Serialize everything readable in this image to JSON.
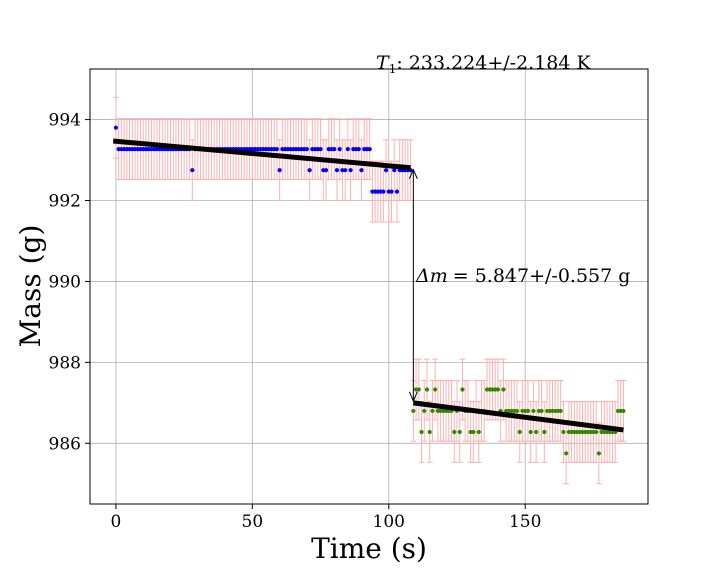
{
  "chart_data": {
    "type": "scatter",
    "xlabel": "Time (s)",
    "ylabel": "Mass (g)",
    "xlim": [
      -9.5,
      195
    ],
    "ylim": [
      984.5,
      995.25
    ],
    "xticks": [
      0,
      50,
      100,
      150
    ],
    "yticks": [
      986,
      988,
      990,
      992,
      994
    ],
    "grid": true,
    "annotations": {
      "temperature_label": "T",
      "temperature_sub": "1",
      "temperature_value": ": 233.224+/-2.184 K",
      "delta_label": "Δm",
      "delta_value": "= 5.847+/-0.557 g"
    },
    "error_bar_half_width": 0.75,
    "series": [
      {
        "color": "#0000ff",
        "x": [
          0,
          1,
          2,
          3,
          4,
          5,
          6,
          7,
          8,
          9,
          10,
          11,
          12,
          13,
          14,
          15,
          16,
          17,
          18,
          19,
          20,
          21,
          22,
          23,
          24,
          25,
          26,
          27,
          28,
          29,
          30,
          31,
          32,
          33,
          34,
          35,
          36,
          37,
          38,
          39,
          40,
          41,
          42,
          43,
          44,
          45,
          46,
          47,
          48,
          49,
          50,
          51,
          52,
          53,
          54,
          55,
          56,
          57,
          58,
          59,
          60,
          61,
          62,
          63,
          64,
          65,
          66,
          67,
          68,
          69,
          70,
          71,
          72,
          73,
          74,
          75,
          76,
          77,
          78,
          79,
          80,
          81,
          82,
          83,
          84,
          85,
          86,
          87,
          88,
          89,
          90,
          91,
          92,
          93,
          94,
          95,
          96,
          97,
          98,
          99,
          100,
          101,
          102,
          103,
          104,
          105,
          106,
          107,
          108
        ],
        "y": [
          993.8,
          993.27,
          993.27,
          993.27,
          993.27,
          993.27,
          993.27,
          993.27,
          993.27,
          993.27,
          993.27,
          993.27,
          993.27,
          993.27,
          993.27,
          993.27,
          993.27,
          993.27,
          993.27,
          993.27,
          993.27,
          993.27,
          993.27,
          993.27,
          993.27,
          993.27,
          993.27,
          993.27,
          992.75,
          993.27,
          993.27,
          993.27,
          993.27,
          993.27,
          993.27,
          993.27,
          993.27,
          993.27,
          993.27,
          993.27,
          993.27,
          993.27,
          993.27,
          993.27,
          993.27,
          993.27,
          993.27,
          993.27,
          993.27,
          993.27,
          993.27,
          993.27,
          993.27,
          993.27,
          993.27,
          993.27,
          993.27,
          993.27,
          993.27,
          993.27,
          992.75,
          993.27,
          993.27,
          993.27,
          993.27,
          993.27,
          993.27,
          993.27,
          993.27,
          993.27,
          993.27,
          992.75,
          993.27,
          993.27,
          993.27,
          993.27,
          992.75,
          992.75,
          993.27,
          993.27,
          993.27,
          992.75,
          993.27,
          992.75,
          992.75,
          993.27,
          992.75,
          993.27,
          993.27,
          993.27,
          992.75,
          993.27,
          993.27,
          993.27,
          992.22,
          992.22,
          992.22,
          992.22,
          992.22,
          992.75,
          992.22,
          992.22,
          992.75,
          992.22,
          992.75,
          992.75,
          992.75,
          992.75,
          992.75
        ]
      },
      {
        "color": "#2e8b00",
        "x": [
          109,
          110,
          111,
          112,
          113,
          114,
          115,
          116,
          117,
          118,
          119,
          120,
          121,
          122,
          123,
          124,
          125,
          126,
          127,
          128,
          129,
          130,
          131,
          132,
          133,
          134,
          135,
          136,
          137,
          138,
          139,
          140,
          141,
          142,
          143,
          144,
          145,
          146,
          147,
          148,
          149,
          150,
          151,
          152,
          153,
          154,
          155,
          156,
          157,
          158,
          159,
          160,
          161,
          162,
          163,
          164,
          165,
          166,
          167,
          168,
          169,
          170,
          171,
          172,
          173,
          174,
          175,
          176,
          177,
          178,
          179,
          180,
          181,
          182,
          183,
          184,
          185,
          186
        ],
        "y": [
          986.8,
          987.33,
          987.33,
          986.28,
          986.8,
          987.33,
          986.28,
          986.8,
          987.33,
          986.8,
          986.8,
          986.8,
          986.8,
          986.8,
          986.8,
          986.28,
          986.8,
          986.28,
          987.33,
          986.8,
          986.8,
          986.28,
          986.28,
          986.8,
          986.28,
          986.8,
          986.8,
          987.33,
          987.33,
          987.33,
          987.33,
          987.33,
          986.8,
          987.33,
          986.8,
          986.8,
          986.8,
          986.8,
          986.8,
          986.28,
          986.8,
          986.8,
          986.8,
          986.28,
          986.8,
          986.28,
          986.8,
          986.8,
          986.28,
          986.8,
          986.8,
          986.8,
          986.8,
          986.8,
          986.8,
          986.28,
          985.75,
          986.28,
          986.28,
          986.28,
          986.28,
          986.28,
          986.28,
          986.28,
          986.28,
          986.28,
          986.28,
          986.28,
          985.75,
          986.28,
          986.28,
          986.28,
          986.28,
          986.28,
          986.28,
          986.8,
          986.8,
          986.8
        ]
      }
    ],
    "fits": [
      {
        "x": [
          -1,
          108
        ],
        "y": [
          993.47,
          992.81
        ],
        "color": "#000000"
      },
      {
        "x": [
          109,
          186
        ],
        "y": [
          987.0,
          986.33
        ],
        "color": "#000000"
      }
    ],
    "arrow": {
      "x": 109,
      "y_top": 992.81,
      "y_bottom": 987.0
    },
    "errorbar_color": "#ffb0b0"
  }
}
